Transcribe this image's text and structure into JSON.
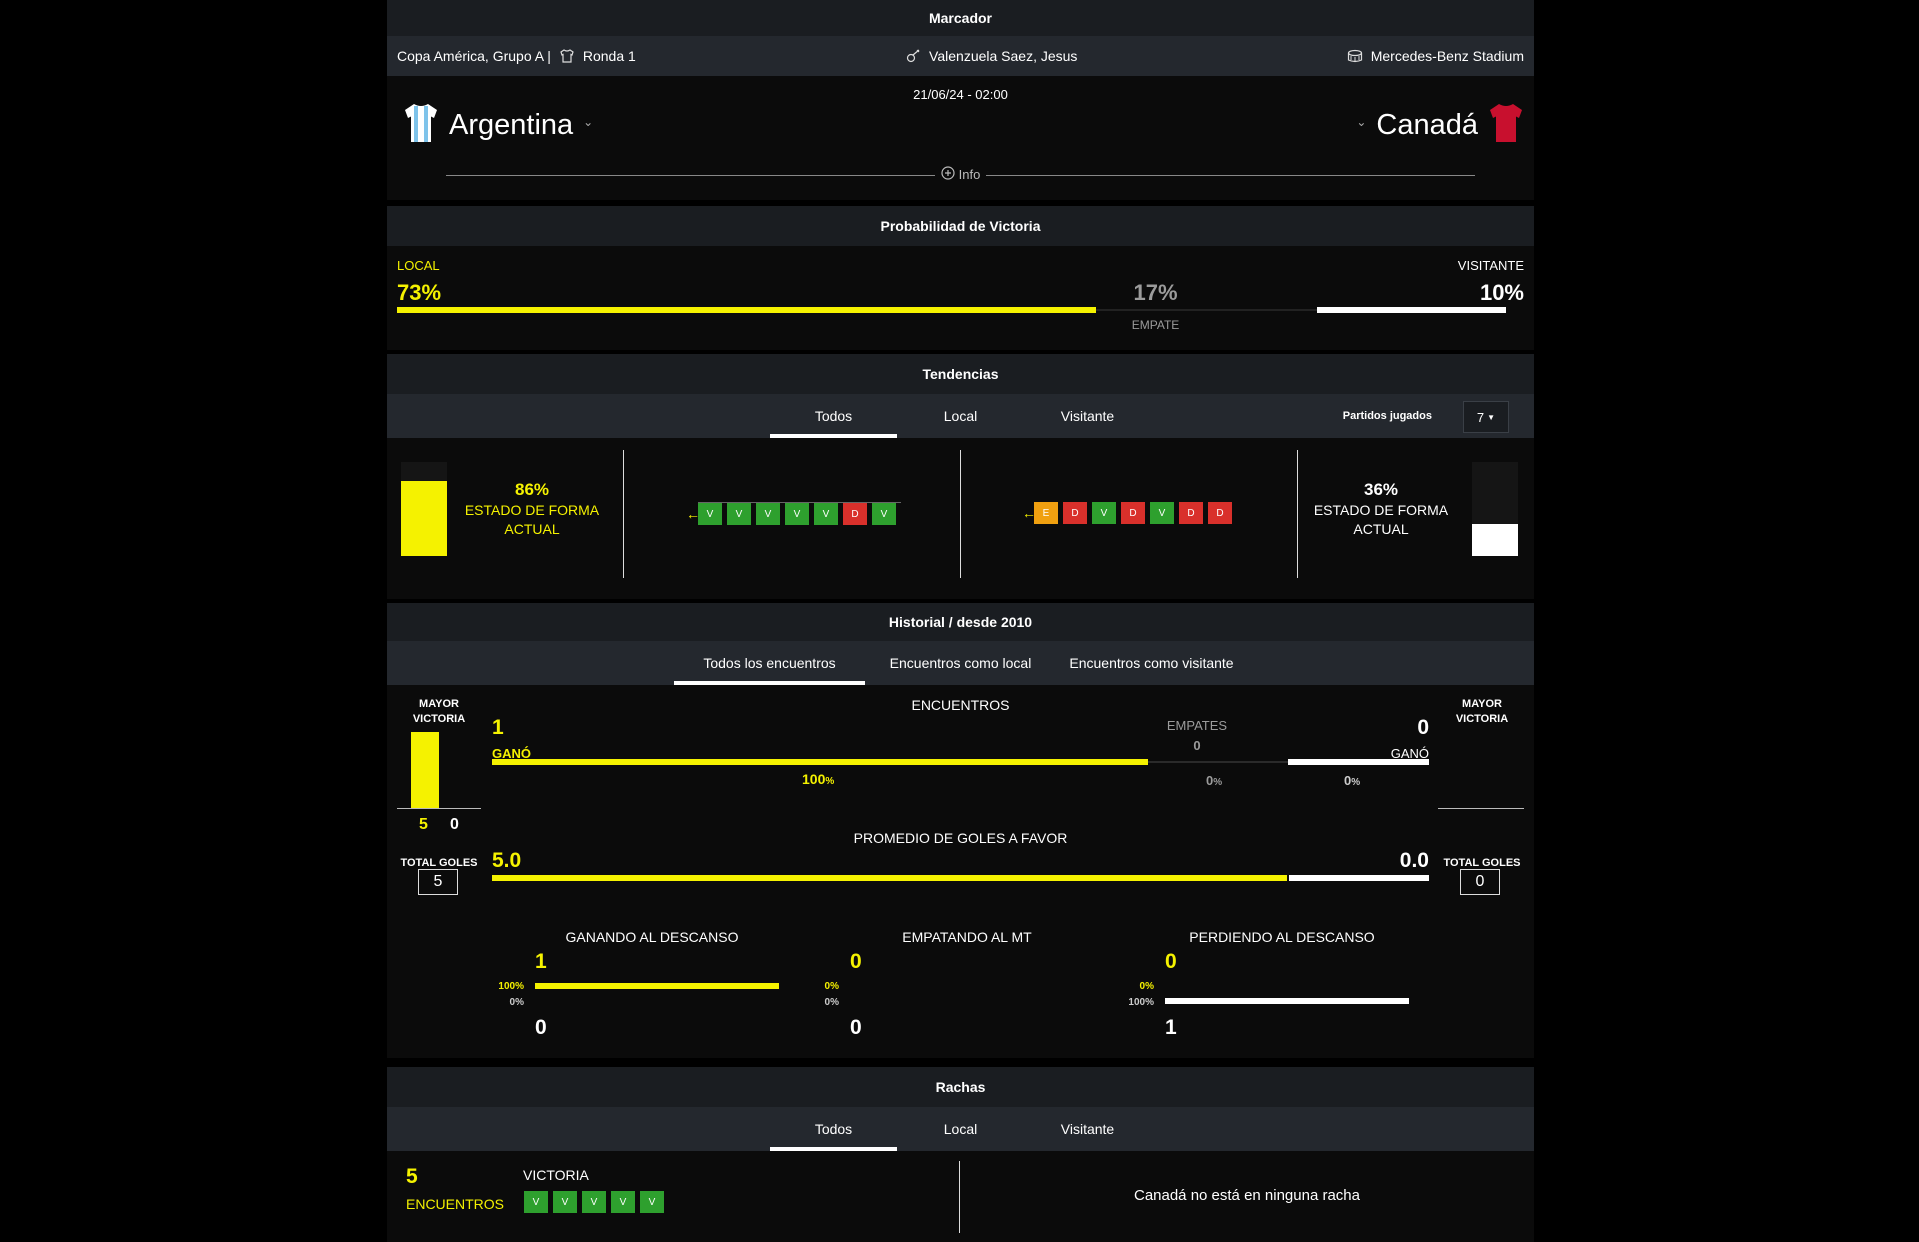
{
  "scoreboard": {
    "title": "Marcador",
    "competition": "Copa América, Grupo A |",
    "round": "Ronda 1",
    "referee": "Valenzuela Saez, Jesus",
    "stadium": "Mercedes-Benz Stadium",
    "datetime": "21/06/24 - 02:00",
    "home_team": "Argentina",
    "away_team": "Canadá",
    "info_label": "Info",
    "home_chevron": "⌄",
    "away_chevron": "⌄",
    "colors": {
      "home_shirt_a": "#9fd3f0",
      "home_shirt_b": "#ffffff",
      "away_shirt": "#c8102e"
    }
  },
  "win_probability": {
    "title": "Probabilidad de Victoria",
    "local_label": "LOCAL",
    "away_label": "VISITANTE",
    "draw_label": "EMPATE",
    "local_value": "73%",
    "draw_value": "17%",
    "away_value": "10%",
    "local_pct": 73,
    "draw_pct": 17,
    "away_pct": 10
  },
  "trends": {
    "title": "Tendencias",
    "tabs": [
      "Todos",
      "Local",
      "Visitante"
    ],
    "active_tab": 0,
    "played_label": "Partidos jugados",
    "played_value": "7",
    "home_form_pct": "86%",
    "home_form_fill": 0.86,
    "form_label": "ESTADO DE FORMA ACTUAL",
    "away_form_pct": "36%",
    "away_form_fill": 0.36,
    "home_results": [
      "V",
      "V",
      "V",
      "V",
      "V",
      "D",
      "V"
    ],
    "away_results": [
      "E",
      "D",
      "V",
      "D",
      "V",
      "D",
      "D"
    ]
  },
  "history": {
    "title": "Historial / desde 2010",
    "tabs": [
      "Todos los encuentros",
      "Encuentros como local",
      "Encuentros como visitante"
    ],
    "active_tab": 0,
    "biggest_win_label": "MAYOR VICTORIA",
    "home_biggest_win": {
      "for": "5",
      "against": "0"
    },
    "encounters_label": "ENCUENTROS",
    "home_wins": "1",
    "away_wins": "0",
    "won_label": "GANÓ",
    "draws_label": "EMPATES",
    "draws_value": "0",
    "home_win_pct": "100",
    "draw_pct": "0",
    "away_win_pct": "0",
    "pct_sign": "%",
    "avg_goals_label": "PROMEDIO DE GOLES A FAVOR",
    "home_avg": "5.0",
    "away_avg": "0.0",
    "total_goals_label": "TOTAL GOLES",
    "home_total": "5",
    "away_total": "0",
    "halftime": [
      {
        "label": "GANANDO AL DESCANSO",
        "top": "1",
        "bottom": "0",
        "top_pct": "100%",
        "bottom_pct": "0%",
        "top_fill": 1.0,
        "bottom_fill": 0
      },
      {
        "label": "EMPATANDO AL MT",
        "top": "0",
        "bottom": "0",
        "top_pct": "0%",
        "bottom_pct": "0%",
        "top_fill": 0,
        "bottom_fill": 0
      },
      {
        "label": "PERDIENDO AL DESCANSO",
        "top": "0",
        "bottom": "1",
        "top_pct": "0%",
        "bottom_pct": "100%",
        "top_fill": 0,
        "bottom_fill": 1.0
      }
    ]
  },
  "streaks": {
    "title": "Rachas",
    "tabs": [
      "Todos",
      "Local",
      "Visitante"
    ],
    "active_tab": 0,
    "home_count": "5",
    "home_count_label": "ENCUENTROS",
    "home_type": "VICTORIA",
    "home_badges": [
      "V",
      "V",
      "V",
      "V",
      "V"
    ],
    "away_message": "Canadá no está en ninguna racha"
  }
}
